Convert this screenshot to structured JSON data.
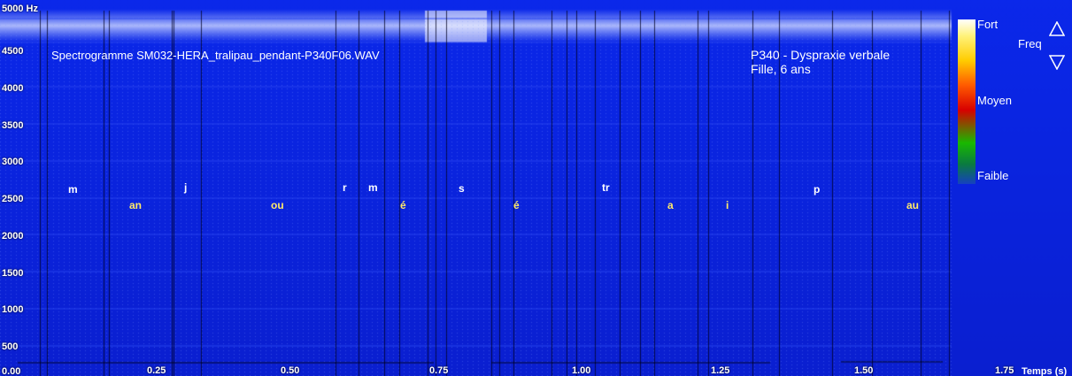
{
  "app": {
    "title": "Spectrogramme SM032-HERA_tralipau_pendant-P340F06.WAV",
    "patient_line1": "P340 -   Dyspraxie verbale",
    "patient_line2": "Fille, 6 ans"
  },
  "colorscale": {
    "high": "Fort",
    "mid": "Moyen",
    "low": "Faible",
    "freq_label": "Freq",
    "colors": [
      "#ffffff",
      "#fff27a",
      "#ffcc00",
      "#ff5a00",
      "#d80000",
      "#19b800",
      "#0a7a40",
      "#1540c0"
    ]
  },
  "controls": {
    "up_icon": "triangle-up-icon",
    "down_icon": "triangle-down-icon"
  },
  "axes": {
    "y_ticks": [
      "5000 Hz",
      "4500",
      "4000",
      "3500",
      "3000",
      "2500",
      "2000",
      "1500",
      "1000",
      "500",
      "0.00"
    ],
    "x_ticks": [
      "0.25",
      "0.50",
      "0.75",
      "1.00",
      "1.25",
      "1.50",
      "1.75"
    ],
    "x_unit": "Temps (s)"
  },
  "phonemes": {
    "white": [
      "m",
      "j",
      "r",
      "m",
      "s",
      "tr",
      "p"
    ],
    "yellow": [
      "an",
      "ou",
      "é",
      "é",
      "a",
      "i",
      "au"
    ]
  },
  "chart_data": {
    "type": "heatmap",
    "title": "Spectrogramme SM032-HERA_tralipau_pendant-P340F06.WAV",
    "xlabel": "Temps (s)",
    "ylabel": "Hz",
    "xlim": [
      0,
      1.8
    ],
    "ylim": [
      0,
      5000
    ],
    "x_ticks": [
      0.25,
      0.5,
      0.75,
      1.0,
      1.25,
      1.5,
      1.75
    ],
    "y_ticks": [
      0,
      500,
      1000,
      1500,
      2000,
      2500,
      3000,
      3500,
      4000,
      4500,
      5000
    ],
    "legend": [
      "Fort",
      "Moyen",
      "Faible"
    ],
    "segments": [
      {
        "label": "m",
        "t": 0.08
      },
      {
        "label": "an",
        "t": 0.19
      },
      {
        "label": "j",
        "t": 0.29
      },
      {
        "label": "ou",
        "t": 0.46
      },
      {
        "label": "r",
        "t": 0.64
      },
      {
        "label": "m",
        "t": 0.69
      },
      {
        "label": "é",
        "t": 0.74
      },
      {
        "label": "s",
        "t": 0.85
      },
      {
        "label": "é",
        "t": 0.95
      },
      {
        "label": "tr",
        "t": 1.12
      },
      {
        "label": "a",
        "t": 1.23
      },
      {
        "label": "i",
        "t": 1.33
      },
      {
        "label": "p",
        "t": 1.49
      },
      {
        "label": "au",
        "t": 1.64
      }
    ]
  }
}
